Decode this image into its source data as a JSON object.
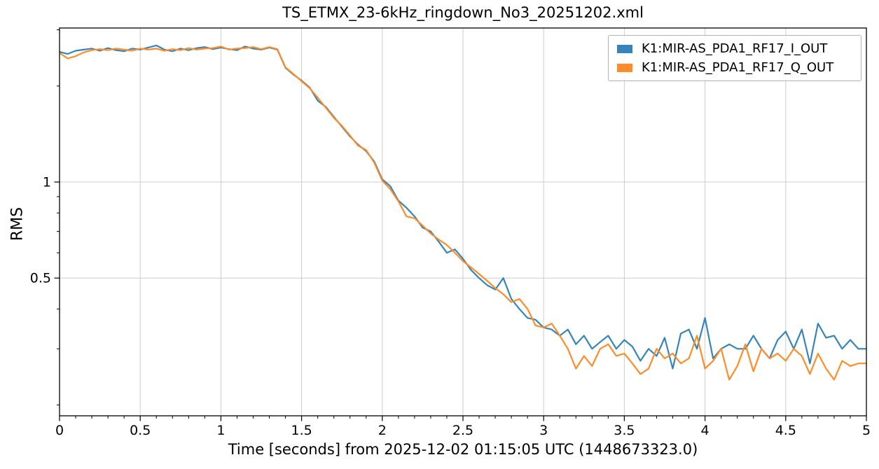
{
  "figure": {
    "title": "TS_ETMX_23-6kHz_ringdown_No3_20251202.xml",
    "xlabel": "Time [seconds] from 2025-12-02 01:15:05 UTC (1448673323.0)",
    "ylabel": "RMS",
    "background_color": "#ffffff",
    "grid_color": "#cccccc",
    "spine_color": "#000000"
  },
  "legend": {
    "position": "upper-right",
    "items": [
      {
        "label": "K1:MIR-AS_PDA1_RF17_I_OUT",
        "color": "#3585BB"
      },
      {
        "label": "K1:MIR-AS_PDA1_RF17_Q_OUT",
        "color": "#FF8C26"
      }
    ]
  },
  "chart_data": {
    "type": "line",
    "title": "TS_ETMX_23-6kHz_ringdown_No3_20251202.xml",
    "xlabel": "Time [seconds] from 2025-12-02 01:15:05 UTC (1448673323.0)",
    "ylabel": "RMS",
    "x_axis": {
      "scale": "linear",
      "lim": [
        0,
        5
      ],
      "major_ticks": [
        0,
        0.5,
        1,
        1.5,
        2,
        2.5,
        3,
        3.5,
        4,
        4.5,
        5
      ],
      "tick_labels": [
        "0",
        "0.5",
        "1",
        "1.5",
        "2",
        "2.5",
        "3",
        "3.5",
        "4",
        "4.5",
        "5"
      ],
      "minor_tick_step": 0.1
    },
    "y_axis": {
      "scale": "log",
      "lim": [
        0.185,
        3.04
      ],
      "major_ticks": [
        1,
        0.5
      ],
      "tick_labels": [
        "1",
        "0.5"
      ],
      "minor_ticks": [
        3,
        2,
        0.9,
        0.8,
        0.7,
        0.6,
        0.4,
        0.3,
        0.2
      ]
    },
    "grid": {
      "x_lines": [
        0.5,
        1,
        1.5,
        2,
        2.5,
        3,
        3.5,
        4,
        4.5
      ],
      "y_lines": [
        1,
        0.5
      ],
      "color": "#cccccc"
    },
    "x": [
      0,
      0.05,
      0.1,
      0.15,
      0.2,
      0.25,
      0.3,
      0.35,
      0.4,
      0.45,
      0.5,
      0.55,
      0.6,
      0.65,
      0.7,
      0.75,
      0.8,
      0.85,
      0.9,
      0.95,
      1,
      1.05,
      1.1,
      1.15,
      1.2,
      1.25,
      1.3,
      1.35,
      1.4,
      1.45,
      1.5,
      1.55,
      1.6,
      1.65,
      1.7,
      1.75,
      1.8,
      1.85,
      1.9,
      1.95,
      2,
      2.05,
      2.1,
      2.15,
      2.2,
      2.25,
      2.3,
      2.35,
      2.4,
      2.45,
      2.5,
      2.55,
      2.6,
      2.65,
      2.7,
      2.75,
      2.8,
      2.85,
      2.9,
      2.95,
      3,
      3.05,
      3.1,
      3.15,
      3.2,
      3.25,
      3.3,
      3.35,
      3.4,
      3.45,
      3.5,
      3.55,
      3.6,
      3.65,
      3.7,
      3.75,
      3.8,
      3.85,
      3.9,
      3.95,
      4,
      4.05,
      4.1,
      4.15,
      4.2,
      4.25,
      4.3,
      4.35,
      4.4,
      4.45,
      4.5,
      4.55,
      4.6,
      4.65,
      4.7,
      4.75,
      4.8,
      4.85,
      4.9,
      4.95,
      5
    ],
    "series": [
      {
        "name": "K1:MIR-AS_PDA1_RF17_I_OUT",
        "color": "#3585BB",
        "values": [
          2.56,
          2.52,
          2.58,
          2.6,
          2.62,
          2.58,
          2.63,
          2.59,
          2.57,
          2.62,
          2.6,
          2.64,
          2.68,
          2.6,
          2.57,
          2.62,
          2.59,
          2.63,
          2.65,
          2.61,
          2.64,
          2.61,
          2.59,
          2.66,
          2.62,
          2.6,
          2.64,
          2.6,
          2.28,
          2.17,
          2.08,
          1.98,
          1.8,
          1.72,
          1.6,
          1.49,
          1.39,
          1.31,
          1.25,
          1.16,
          1.02,
          0.97,
          0.875,
          0.83,
          0.78,
          0.72,
          0.7,
          0.65,
          0.6,
          0.615,
          0.575,
          0.53,
          0.5,
          0.475,
          0.46,
          0.5,
          0.43,
          0.4,
          0.375,
          0.37,
          0.35,
          0.345,
          0.33,
          0.345,
          0.31,
          0.33,
          0.3,
          0.315,
          0.33,
          0.3,
          0.32,
          0.305,
          0.275,
          0.3,
          0.285,
          0.325,
          0.26,
          0.335,
          0.345,
          0.3,
          0.375,
          0.28,
          0.3,
          0.31,
          0.3,
          0.3,
          0.33,
          0.3,
          0.28,
          0.32,
          0.34,
          0.3,
          0.345,
          0.27,
          0.36,
          0.325,
          0.33,
          0.3,
          0.32,
          0.3,
          0.3
        ]
      },
      {
        "name": "K1:MIR-AS_PDA1_RF17_Q_OUT",
        "color": "#FF8C26",
        "values": [
          2.54,
          2.44,
          2.48,
          2.55,
          2.59,
          2.61,
          2.59,
          2.62,
          2.6,
          2.58,
          2.62,
          2.6,
          2.62,
          2.58,
          2.61,
          2.59,
          2.63,
          2.6,
          2.62,
          2.63,
          2.66,
          2.6,
          2.62,
          2.63,
          2.65,
          2.61,
          2.65,
          2.61,
          2.29,
          2.18,
          2.07,
          1.97,
          1.84,
          1.71,
          1.59,
          1.5,
          1.4,
          1.3,
          1.26,
          1.15,
          1.01,
          0.95,
          0.87,
          0.78,
          0.77,
          0.73,
          0.69,
          0.66,
          0.635,
          0.6,
          0.565,
          0.54,
          0.515,
          0.49,
          0.465,
          0.445,
          0.42,
          0.43,
          0.4,
          0.355,
          0.35,
          0.36,
          0.33,
          0.3,
          0.26,
          0.285,
          0.265,
          0.3,
          0.31,
          0.285,
          0.29,
          0.27,
          0.25,
          0.26,
          0.3,
          0.28,
          0.29,
          0.27,
          0.28,
          0.33,
          0.26,
          0.275,
          0.3,
          0.24,
          0.265,
          0.31,
          0.255,
          0.3,
          0.28,
          0.29,
          0.275,
          0.3,
          0.285,
          0.25,
          0.29,
          0.26,
          0.24,
          0.275,
          0.265,
          0.27,
          0.27
        ]
      }
    ],
    "legend_position": "upper-right",
    "grid_on": true
  }
}
